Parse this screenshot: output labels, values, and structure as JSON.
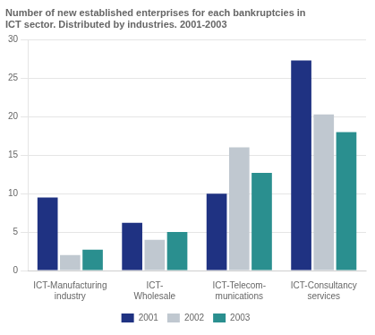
{
  "chart_data": {
    "type": "bar",
    "title": "Number of new established enterprises for each bankruptcies in\nICT sector. Distributed by industries. 2001-2003",
    "categories": [
      "ICT-Manufacturing\nindustry",
      "ICT-\nWholesale",
      "ICT-Telecom-\nmunications",
      "ICT-Consultancy\nservices"
    ],
    "series": [
      {
        "name": "2001",
        "color": "#1f3282",
        "values": [
          9.5,
          6.2,
          10.0,
          27.3
        ]
      },
      {
        "name": "2002",
        "color": "#c0c8d0",
        "values": [
          2.0,
          4.0,
          16.0,
          20.3
        ]
      },
      {
        "name": "2003",
        "color": "#2a8f8f",
        "values": [
          2.7,
          5.0,
          12.7,
          18.0
        ]
      }
    ],
    "ylim": [
      0,
      30
    ],
    "yticks": [
      0,
      5,
      10,
      15,
      20,
      25,
      30
    ],
    "grid": true,
    "legend": "bottom"
  }
}
